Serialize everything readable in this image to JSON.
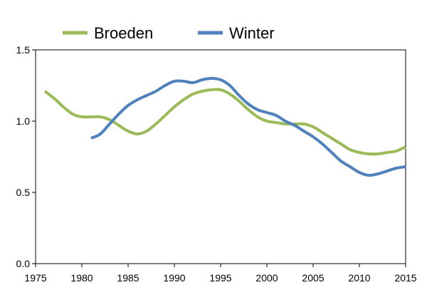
{
  "chart_data": {
    "type": "line",
    "title": "",
    "xlabel": "",
    "ylabel": "",
    "xlim": [
      1975,
      2015
    ],
    "ylim": [
      0,
      1.5
    ],
    "x_ticks": [
      "1975",
      "1980",
      "1985",
      "1990",
      "1995",
      "2000",
      "2005",
      "2010",
      "2015"
    ],
    "y_ticks": [
      "0.0",
      "0.5",
      "1.0",
      "1.5"
    ],
    "grid": false,
    "legend": "top",
    "series": [
      {
        "name": "Broeden",
        "color": "#9BBB59",
        "x": [
          1976,
          1977,
          1978,
          1979,
          1980,
          1981,
          1982,
          1983,
          1984,
          1985,
          1986,
          1987,
          1988,
          1989,
          1990,
          1991,
          1992,
          1993,
          1994,
          1995,
          1996,
          1997,
          1998,
          1999,
          2000,
          2001,
          2002,
          2003,
          2004,
          2005,
          2006,
          2007,
          2008,
          2009,
          2010,
          2011,
          2012,
          2013,
          2014,
          2015
        ],
        "values": [
          1.21,
          1.16,
          1.1,
          1.05,
          1.03,
          1.03,
          1.03,
          1.01,
          0.97,
          0.93,
          0.91,
          0.93,
          0.98,
          1.04,
          1.1,
          1.15,
          1.19,
          1.21,
          1.22,
          1.22,
          1.19,
          1.14,
          1.08,
          1.03,
          1.0,
          0.99,
          0.98,
          0.98,
          0.98,
          0.96,
          0.92,
          0.88,
          0.84,
          0.8,
          0.78,
          0.77,
          0.77,
          0.78,
          0.79,
          0.82
        ]
      },
      {
        "name": "Winter",
        "color": "#4F81BD",
        "x": [
          1981,
          1982,
          1983,
          1984,
          1985,
          1986,
          1987,
          1988,
          1989,
          1990,
          1991,
          1992,
          1993,
          1994,
          1995,
          1996,
          1997,
          1998,
          1999,
          2000,
          2001,
          2002,
          2003,
          2004,
          2005,
          2006,
          2007,
          2008,
          2009,
          2010,
          2011,
          2012,
          2013,
          2014,
          2015
        ],
        "values": [
          0.88,
          0.91,
          0.98,
          1.05,
          1.11,
          1.15,
          1.18,
          1.21,
          1.25,
          1.28,
          1.28,
          1.27,
          1.29,
          1.3,
          1.29,
          1.25,
          1.18,
          1.12,
          1.08,
          1.06,
          1.04,
          1.0,
          0.97,
          0.93,
          0.89,
          0.84,
          0.78,
          0.72,
          0.68,
          0.64,
          0.62,
          0.63,
          0.65,
          0.67,
          0.68
        ]
      }
    ]
  }
}
